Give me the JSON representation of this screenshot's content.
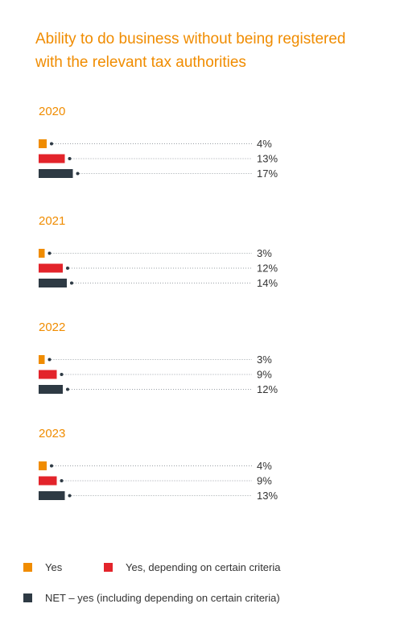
{
  "title": "Ability to do business without being registered with the relevant tax authorities",
  "colors": {
    "title": "#f08c00",
    "yes": "#f08c00",
    "criteria": "#e3242b",
    "net": "#2e3a44",
    "dots": "#9aa0a6"
  },
  "chart_data": {
    "type": "bar",
    "orientation": "horizontal",
    "title": "Ability to do business without being registered with the relevant tax authorities",
    "xlim": [
      0,
      100
    ],
    "legend_position": "bottom",
    "series_order": [
      "Yes",
      "Yes, depending on certain criteria",
      "NET – yes (including depending on certain criteria)"
    ],
    "groups": [
      {
        "year": "2020",
        "values": [
          4,
          13,
          17
        ],
        "labels": [
          "4%",
          "13%",
          "17%"
        ]
      },
      {
        "year": "2021",
        "values": [
          3,
          12,
          14
        ],
        "labels": [
          "3%",
          "12%",
          "14%"
        ]
      },
      {
        "year": "2022",
        "values": [
          3,
          9,
          12
        ],
        "labels": [
          "3%",
          "9%",
          "12%"
        ]
      },
      {
        "year": "2023",
        "values": [
          4,
          9,
          13
        ],
        "labels": [
          "4%",
          "9%",
          "13%"
        ]
      }
    ]
  },
  "legend": {
    "yes": "Yes",
    "criteria": "Yes, depending on certain criteria",
    "net": "NET – yes (including depending on certain criteria)"
  }
}
